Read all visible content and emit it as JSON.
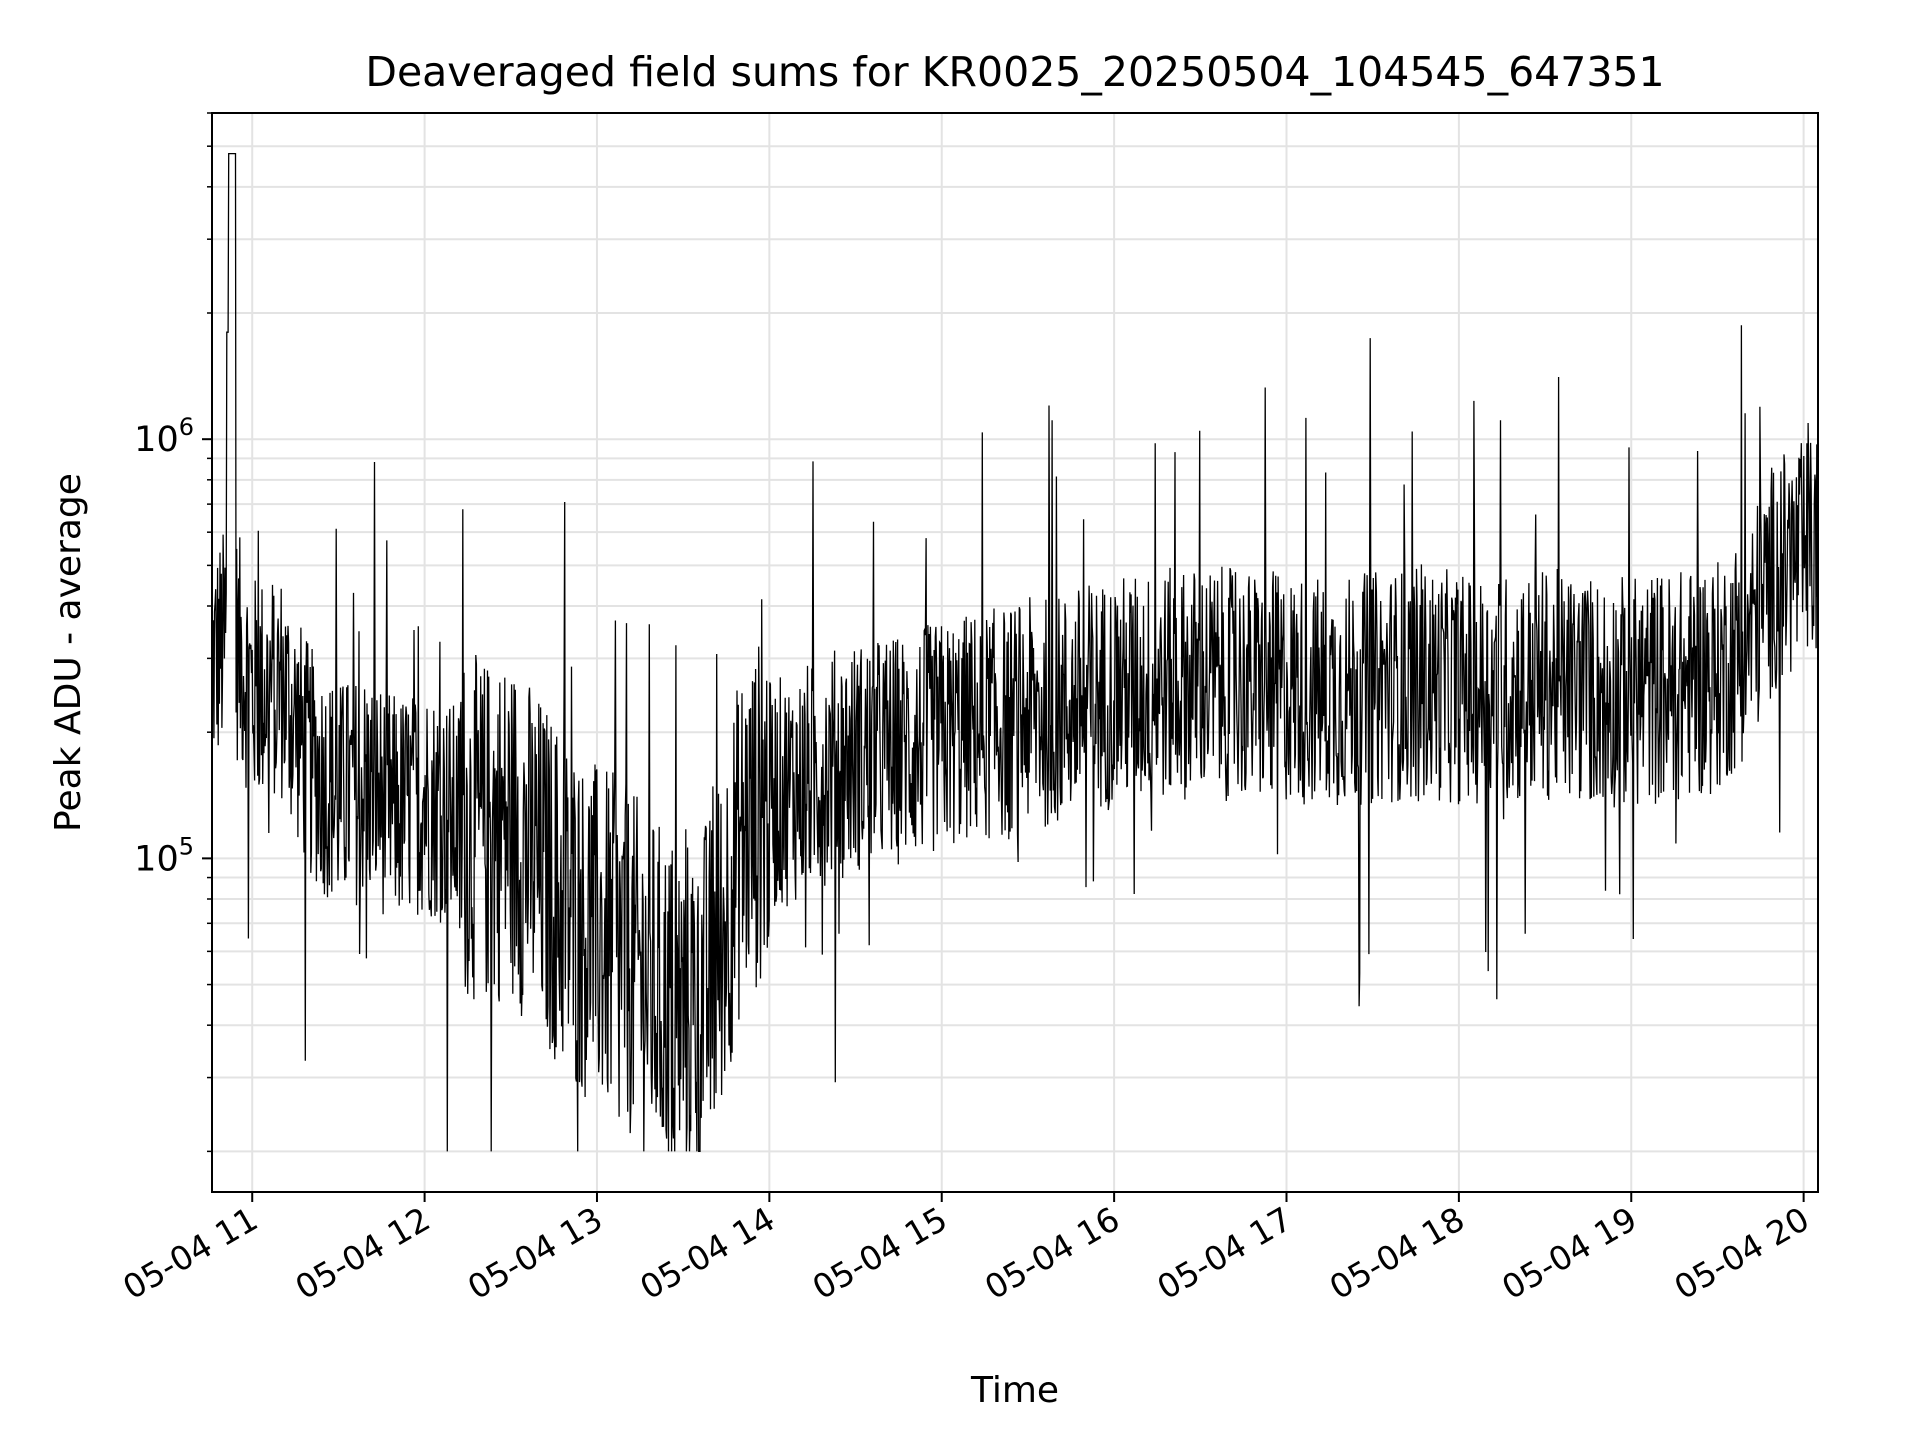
{
  "chart_data": {
    "type": "line",
    "title": "Deaveraged field sums for KR0025_20250504_104545_647351",
    "xlabel": "Time",
    "ylabel": "Peak ADU - average",
    "yscale": "log",
    "ylim": [
      16000,
      6000000
    ],
    "xlim": [
      "05-04 10:46",
      "05-04 20:05"
    ],
    "x_ticks": [
      "05-04 11",
      "05-04 12",
      "05-04 13",
      "05-04 14",
      "05-04 15",
      "05-04 16",
      "05-04 17",
      "05-04 18",
      "05-04 19",
      "05-04 20"
    ],
    "y_ticks": [
      {
        "base": "10",
        "exp": "5",
        "value": 100000
      },
      {
        "base": "10",
        "exp": "6",
        "value": 1000000
      }
    ],
    "grid": true,
    "line_color": "#000000",
    "series": [
      {
        "x": [
          "05-04 10:46",
          "05-04 10:53",
          "05-04 11:00",
          "05-04 11:10",
          "05-04 11:20",
          "05-04 11:30",
          "05-04 11:40",
          "05-04 11:50",
          "05-04 12:00",
          "05-04 12:10",
          "05-04 12:20",
          "05-04 12:30",
          "05-04 12:40",
          "05-04 12:50",
          "05-04 13:00",
          "05-04 13:10",
          "05-04 13:20",
          "05-04 13:30",
          "05-04 13:40",
          "05-04 13:50",
          "05-04 14:00",
          "05-04 14:10",
          "05-04 14:20",
          "05-04 14:30",
          "05-04 14:40",
          "05-04 14:50",
          "05-04 15:00",
          "05-04 15:10",
          "05-04 15:20",
          "05-04 15:30",
          "05-04 15:40",
          "05-04 15:50",
          "05-04 16:00",
          "05-04 16:10",
          "05-04 16:20",
          "05-04 16:30",
          "05-04 16:40",
          "05-04 16:50",
          "05-04 17:00",
          "05-04 17:10",
          "05-04 17:20",
          "05-04 17:30",
          "05-04 17:40",
          "05-04 17:50",
          "05-04 18:00",
          "05-04 18:10",
          "05-04 18:20",
          "05-04 18:30",
          "05-04 18:40",
          "05-04 18:50",
          "05-04 19:00",
          "05-04 19:10",
          "05-04 19:20",
          "05-04 19:30",
          "05-04 19:40",
          "05-04 19:50",
          "05-04 20:00",
          "05-04 20:05"
        ],
        "values": [
          290000,
          350000,
          250000,
          260000,
          170000,
          140000,
          150000,
          130000,
          140000,
          125000,
          115000,
          120000,
          95000,
          75000,
          65000,
          58000,
          48000,
          42000,
          50000,
          110000,
          140000,
          150000,
          165000,
          175000,
          180000,
          185000,
          195000,
          205000,
          210000,
          220000,
          225000,
          240000,
          250000,
          255000,
          260000,
          265000,
          260000,
          255000,
          255000,
          250000,
          250000,
          255000,
          260000,
          260000,
          255000,
          250000,
          255000,
          260000,
          255000,
          250000,
          250000,
          255000,
          260000,
          270000,
          330000,
          480000,
          520000,
          560000
        ]
      }
    ]
  }
}
